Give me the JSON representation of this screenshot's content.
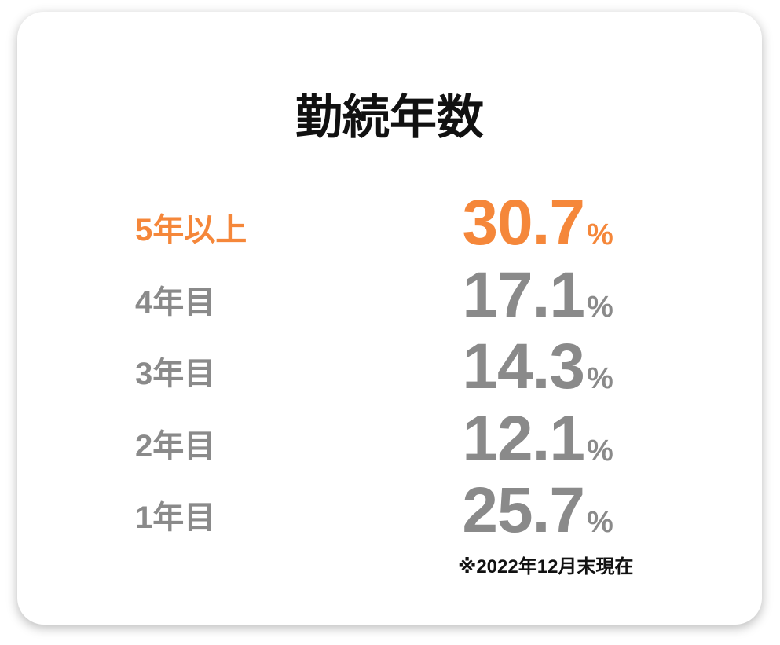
{
  "header": {
    "title": "勤続年数"
  },
  "table": {
    "rows": [
      {
        "label": "5年以上",
        "value": "30.7",
        "unit": "%",
        "highlight": true
      },
      {
        "label": "4年目",
        "value": "17.1",
        "unit": "%",
        "highlight": false
      },
      {
        "label": "3年目",
        "value": "14.3",
        "unit": "%",
        "highlight": false
      },
      {
        "label": "2年目",
        "value": "12.1",
        "unit": "%",
        "highlight": false
      },
      {
        "label": "1年目",
        "value": "25.7",
        "unit": "%",
        "highlight": false
      }
    ]
  },
  "footnote": "※2022年12月末現在",
  "colors": {
    "highlight": "#f5873a",
    "normal": "#8a8a8a"
  }
}
